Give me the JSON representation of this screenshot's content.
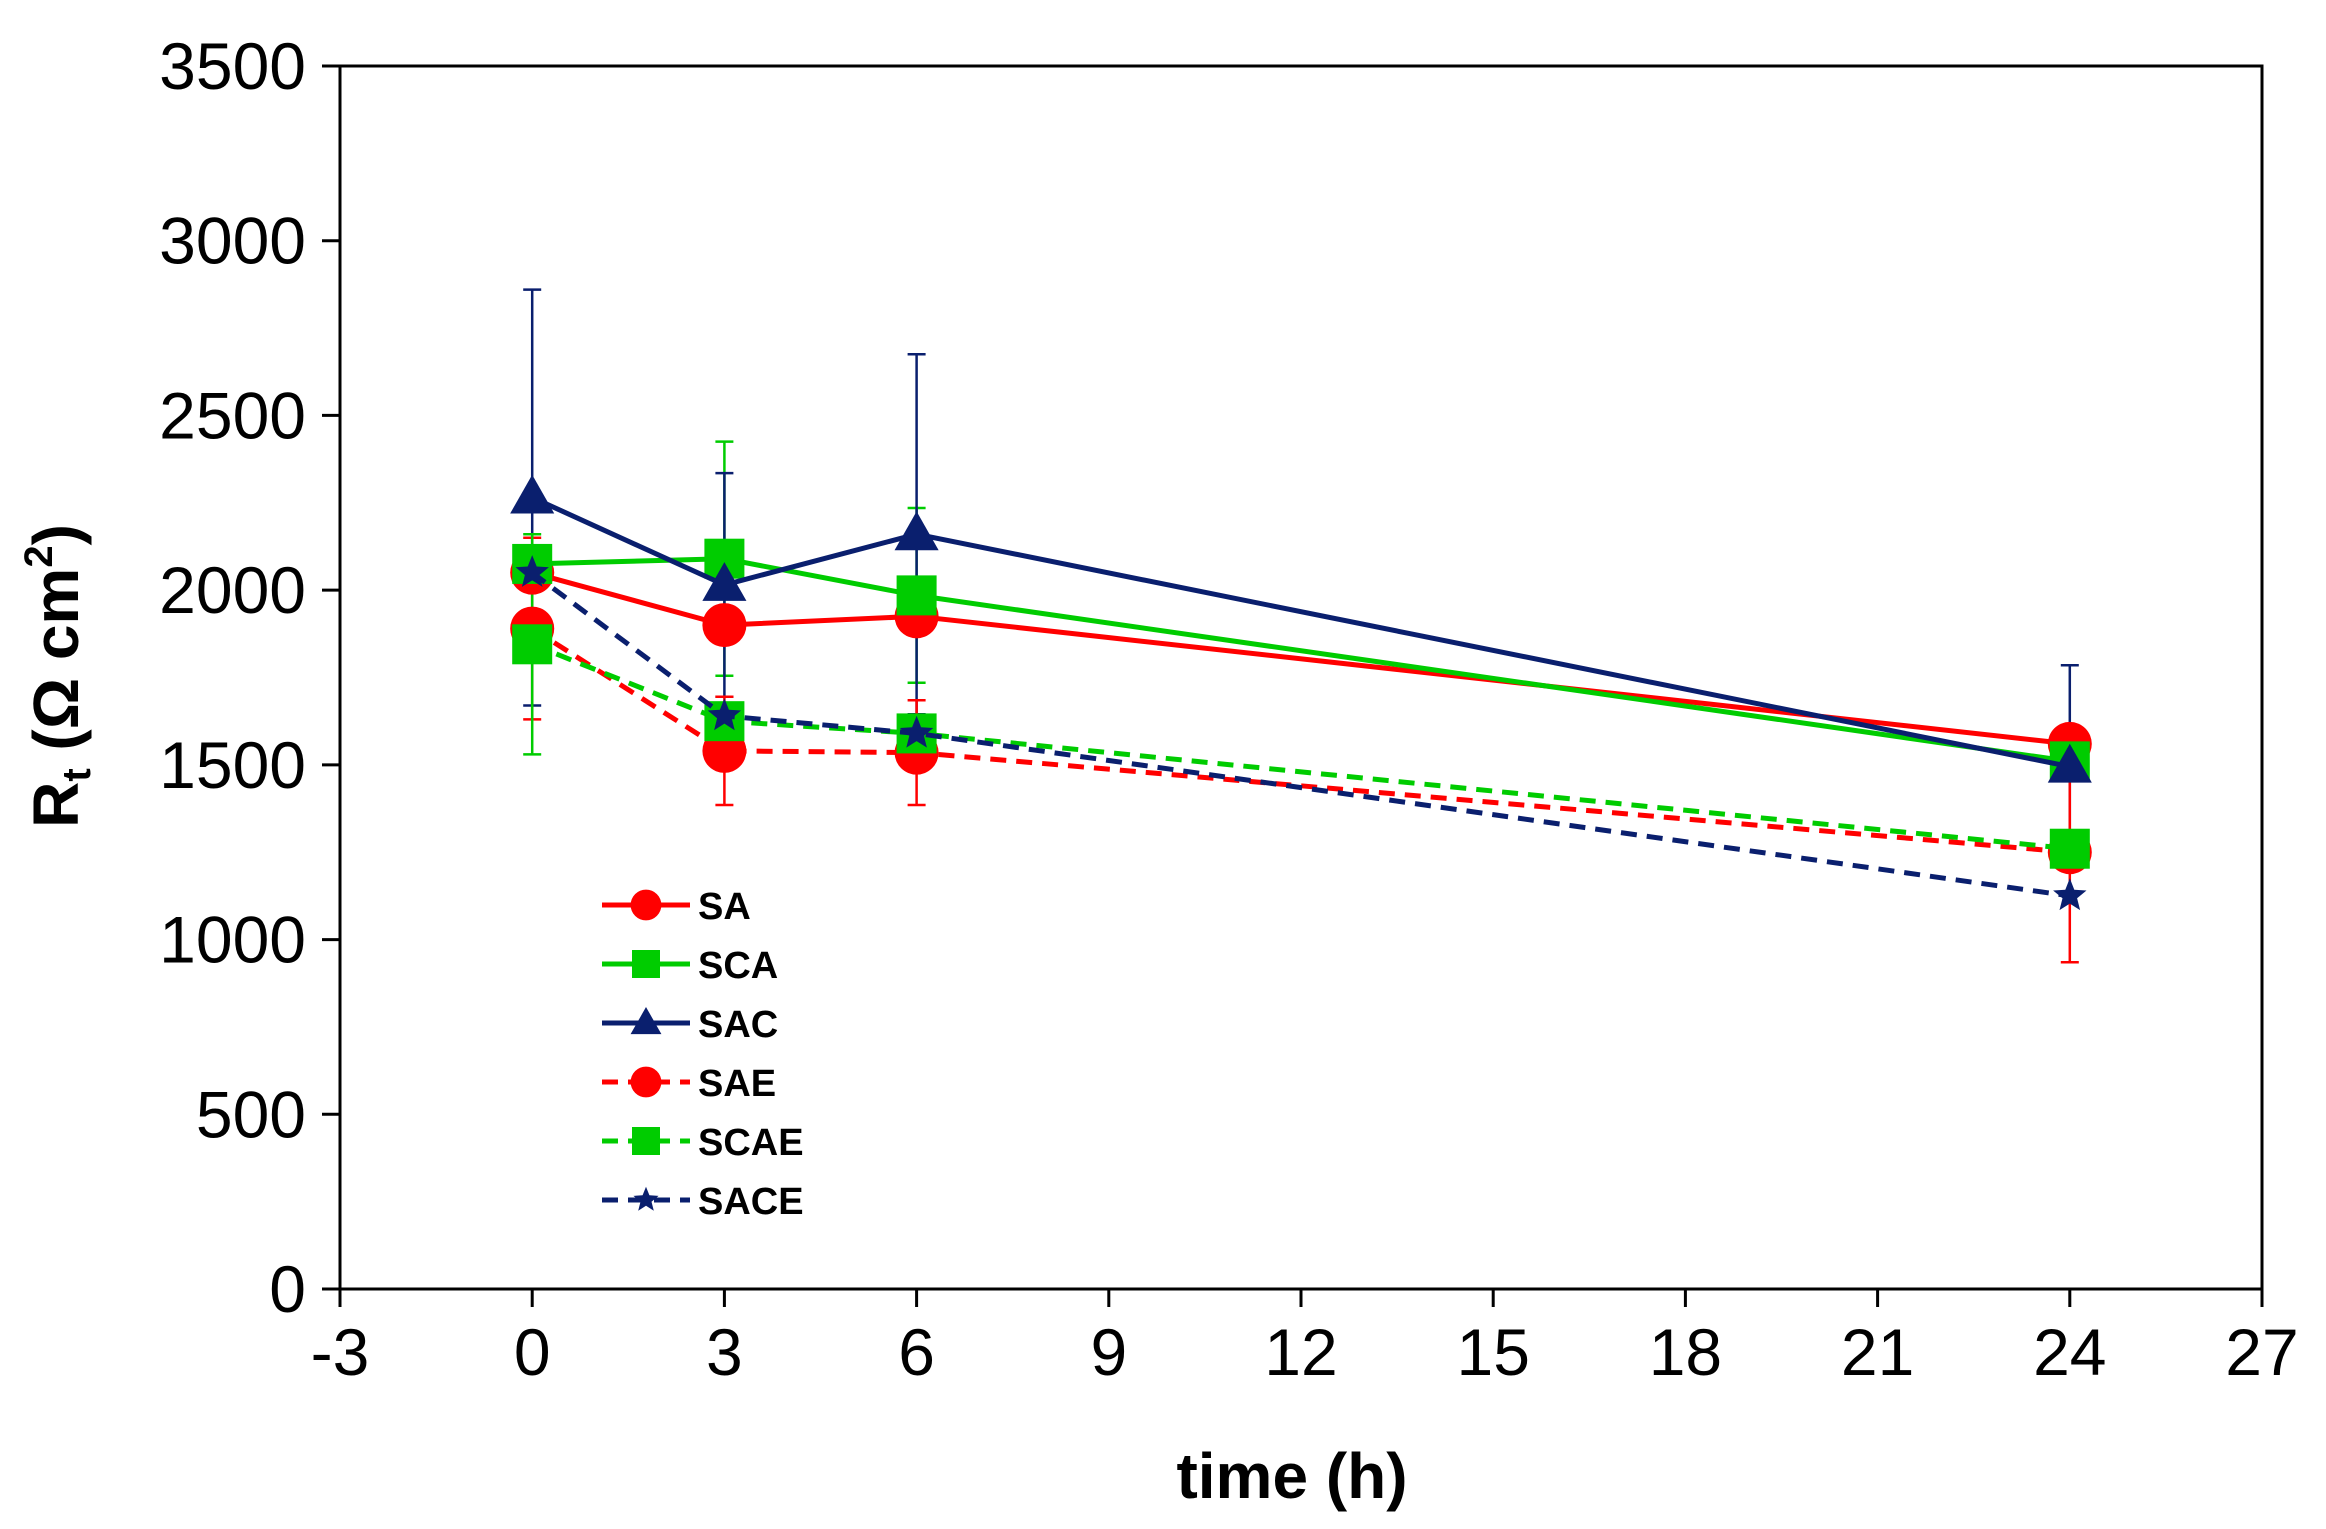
{
  "chart_data": {
    "type": "line",
    "xlabel": "time (h)",
    "ylabel_main": "R",
    "ylabel_sub": "t",
    "ylabel_rest": " (Ω cm",
    "ylabel_sup": "2",
    "ylabel_end": ")",
    "xlim": [
      -3,
      27
    ],
    "ylim": [
      0,
      3500
    ],
    "xticks": [
      "-3",
      "0",
      "3",
      "6",
      "9",
      "12",
      "15",
      "18",
      "21",
      "24",
      "27"
    ],
    "yticks": [
      "0",
      "500",
      "1000",
      "1500",
      "2000",
      "2500",
      "3000",
      "3500"
    ],
    "grid": false,
    "legend_position": "bottom-left",
    "series": [
      {
        "name": "SA",
        "color": "#ff0000",
        "dash": "solid",
        "marker": "circle",
        "x": [
          0,
          3,
          6,
          24
        ],
        "y": [
          2050,
          1900,
          1925,
          1560
        ],
        "err": [
          0,
          0,
          0,
          0
        ]
      },
      {
        "name": "SCA",
        "color": "#00cc00",
        "dash": "solid",
        "marker": "square",
        "x": [
          0,
          3,
          6,
          24
        ],
        "y": [
          2075,
          2090,
          1985,
          1510
        ],
        "err": [
          0,
          335,
          250,
          0
        ]
      },
      {
        "name": "SAC",
        "color": "#0a1f6e",
        "dash": "solid",
        "marker": "triangle",
        "x": [
          0,
          3,
          6,
          24
        ],
        "y": [
          2265,
          2015,
          2160,
          1495
        ],
        "err": [
          595,
          320,
          515,
          290
        ]
      },
      {
        "name": "SAE",
        "color": "#ff0000",
        "dash": "dashed",
        "marker": "circle",
        "x": [
          0,
          3,
          6,
          24
        ],
        "y": [
          1890,
          1540,
          1535,
          1250
        ],
        "err": [
          260,
          155,
          150,
          315
        ]
      },
      {
        "name": "SCAE",
        "color": "#00cc00",
        "dash": "dashed",
        "marker": "square",
        "x": [
          0,
          3,
          6,
          24
        ],
        "y": [
          1845,
          1625,
          1590,
          1260
        ],
        "err": [
          315,
          0,
          0,
          0
        ]
      },
      {
        "name": "SACE",
        "color": "#0a1f6e",
        "dash": "dashed",
        "marker": "star",
        "x": [
          0,
          3,
          6,
          24
        ],
        "y": [
          2050,
          1640,
          1590,
          1125
        ],
        "err": [
          0,
          0,
          0,
          0
        ]
      }
    ]
  }
}
